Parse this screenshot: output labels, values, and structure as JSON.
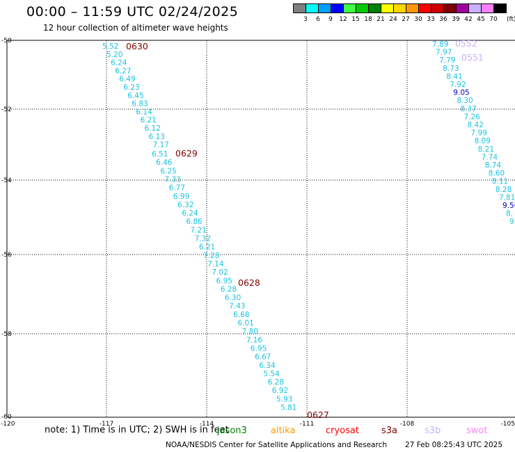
{
  "header": {
    "title": "00:00 – 11:59 UTC 02/24/2025",
    "subtitle": "12 hour collection of altimeter wave heights"
  },
  "legend": {
    "unit": "(ft)",
    "items": [
      {
        "label": "3",
        "color": "#808080"
      },
      {
        "label": "6",
        "color": "#00ffff"
      },
      {
        "label": "9",
        "color": "#00a0ff"
      },
      {
        "label": "12",
        "color": "#0000ff"
      },
      {
        "label": "15",
        "color": "#40ff40"
      },
      {
        "label": "18",
        "color": "#00cc00"
      },
      {
        "label": "21",
        "color": "#008000"
      },
      {
        "label": "24",
        "color": "#ffff00"
      },
      {
        "label": "27",
        "color": "#ffd700"
      },
      {
        "label": "30",
        "color": "#ff9900"
      },
      {
        "label": "33",
        "color": "#ff0000"
      },
      {
        "label": "36",
        "color": "#cc0000"
      },
      {
        "label": "39",
        "color": "#800000"
      },
      {
        "label": "42",
        "color": "#a000a0"
      },
      {
        "label": "45",
        "color": "#c8b0ff"
      },
      {
        "label": "70",
        "color": "#ff80ff"
      },
      {
        "label": "",
        "color": "#000000"
      }
    ]
  },
  "map": {
    "lat_labels": [
      "-50",
      "-52",
      "-54",
      "-56",
      "-58",
      "-60"
    ],
    "lon_labels": [
      "-120",
      "-117",
      "-114",
      "-111",
      "-108",
      "-105"
    ],
    "tracks": [
      {
        "color": "#19c3e0",
        "values": [
          "5.52",
          "5.20",
          "6.24",
          "6.27",
          "6.49",
          "6.23",
          "6.45",
          "6.83",
          "6.14",
          "6.21",
          "6.12",
          "6.13",
          "7.17",
          "6.51",
          "6.46",
          "6.25",
          "7.33",
          "6.77",
          "6.99",
          "6.32",
          "6.24",
          "6.86",
          "7.21",
          "7.32",
          "6.21",
          "7.28",
          "7.14",
          "7.02",
          "6.95",
          "6.28",
          "6.30",
          "7.43",
          "6.68",
          "6.01",
          "7.80",
          "7.16",
          "6.95",
          "6.67",
          "6.34",
          "5.54",
          "6.28",
          "6.92",
          "5.93",
          "5.81"
        ]
      },
      {
        "color": "#19c3e0",
        "values": [
          "7.89",
          "7.97",
          "7.79",
          "8.73",
          "8.41",
          "7.92",
          "9.05",
          "8.30",
          "8.37",
          "7.26",
          "8.42",
          "7.99",
          "8.09",
          "8.21",
          "7.74",
          "8.74",
          "8.60",
          "8.11",
          "8.28",
          "7.81",
          "9.50",
          "8.",
          "9."
        ]
      }
    ],
    "orbits": [
      {
        "label": "0630",
        "color": "#800000"
      },
      {
        "label": "0629",
        "color": "#800000"
      },
      {
        "label": "0628",
        "color": "#800000"
      },
      {
        "label": "0627",
        "color": "#800000"
      },
      {
        "label": "0552",
        "color": "#c8b0ff"
      },
      {
        "label": "0551",
        "color": "#c8b0ff"
      }
    ]
  },
  "footer": {
    "note": "note: 1) Time is in UTC; 2) SWH is in feet",
    "missions": [
      {
        "label": "jason3",
        "color": "#008000"
      },
      {
        "label": "altika",
        "color": "#ff9900"
      },
      {
        "label": "cryosat",
        "color": "#ff0000"
      },
      {
        "label": "s3a",
        "color": "#800000"
      },
      {
        "label": "s3b",
        "color": "#c8b0ff"
      },
      {
        "label": "swot",
        "color": "#ff80ff"
      }
    ],
    "credit": "NOAA/NESDIS Center for Satellite Applications and Research",
    "timestamp": "27 Feb 08:25:43 UTC 2025"
  }
}
